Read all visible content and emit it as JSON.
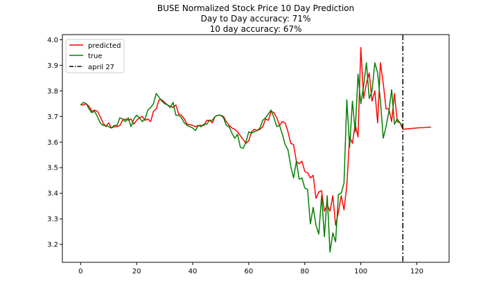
{
  "chart_data": {
    "type": "line",
    "title_lines": [
      "BUSE Normalized Stock Price 10 Day Prediction",
      "Day to Day accuracy: 71%",
      "10 day accuracy: 67%"
    ],
    "xlabel": "",
    "ylabel": "",
    "xlim": [
      -6.5,
      131.5
    ],
    "ylim": [
      3.13,
      4.02
    ],
    "xticks": [
      0,
      20,
      40,
      60,
      80,
      100,
      120
    ],
    "yticks": [
      3.2,
      3.3,
      3.4,
      3.5,
      3.6,
      3.7,
      3.8,
      3.9,
      4.0
    ],
    "grid": false,
    "legend_position": "top-left",
    "series": [
      {
        "name": "predicted",
        "color": "#ff0000",
        "x": [
          0,
          1,
          2,
          3,
          4,
          5,
          6,
          7,
          8,
          9,
          10,
          11,
          12,
          13,
          14,
          15,
          16,
          17,
          18,
          19,
          20,
          21,
          22,
          23,
          24,
          25,
          26,
          27,
          28,
          29,
          30,
          31,
          32,
          33,
          34,
          35,
          36,
          37,
          38,
          39,
          40,
          41,
          42,
          43,
          44,
          45,
          46,
          47,
          48,
          49,
          50,
          51,
          52,
          53,
          54,
          55,
          56,
          57,
          58,
          59,
          60,
          61,
          62,
          63,
          64,
          65,
          66,
          67,
          68,
          69,
          70,
          71,
          72,
          73,
          74,
          75,
          76,
          77,
          78,
          79,
          80,
          81,
          82,
          83,
          84,
          85,
          86,
          87,
          88,
          89,
          90,
          91,
          92,
          93,
          94,
          95,
          96,
          97,
          98,
          99,
          100,
          101,
          102,
          103,
          104,
          105,
          106,
          107,
          108,
          109,
          110,
          111,
          112,
          113,
          114,
          115,
          116,
          117,
          118,
          119,
          120,
          121,
          122,
          123,
          124,
          125
        ],
        "values": [
          3.745,
          3.745,
          3.75,
          3.74,
          3.72,
          3.725,
          3.72,
          3.7,
          3.675,
          3.66,
          3.675,
          3.655,
          3.66,
          3.66,
          3.665,
          3.685,
          3.69,
          3.685,
          3.69,
          3.67,
          3.685,
          3.695,
          3.7,
          3.685,
          3.69,
          3.68,
          3.72,
          3.73,
          3.765,
          3.765,
          3.755,
          3.745,
          3.74,
          3.735,
          3.745,
          3.71,
          3.705,
          3.69,
          3.67,
          3.668,
          3.665,
          3.66,
          3.665,
          3.665,
          3.665,
          3.685,
          3.685,
          3.675,
          3.7,
          3.705,
          3.705,
          3.7,
          3.68,
          3.665,
          3.655,
          3.65,
          3.64,
          3.625,
          3.61,
          3.595,
          3.605,
          3.64,
          3.65,
          3.645,
          3.65,
          3.66,
          3.69,
          3.685,
          3.72,
          3.715,
          3.695,
          3.665,
          3.68,
          3.675,
          3.64,
          3.595,
          3.59,
          3.525,
          3.515,
          3.525,
          3.485,
          3.48,
          3.46,
          3.47,
          3.38,
          3.405,
          3.41,
          3.33,
          3.355,
          3.33,
          3.39,
          3.275,
          3.325,
          3.39,
          3.335,
          3.43,
          3.62,
          3.595,
          3.67,
          3.62,
          3.97,
          3.77,
          3.83,
          3.87,
          3.76,
          3.8,
          3.675,
          3.91,
          3.83,
          3.73,
          3.73,
          3.68,
          3.79,
          3.68,
          3.675,
          3.65,
          3.651,
          3.652,
          3.653,
          3.654,
          3.655,
          3.656,
          3.656,
          3.657,
          3.658,
          3.659
        ]
      },
      {
        "name": "true",
        "color": "#008000",
        "x": [
          0,
          1,
          2,
          3,
          4,
          5,
          6,
          7,
          8,
          9,
          10,
          11,
          12,
          13,
          14,
          15,
          16,
          17,
          18,
          19,
          20,
          21,
          22,
          23,
          24,
          25,
          26,
          27,
          28,
          29,
          30,
          31,
          32,
          33,
          34,
          35,
          36,
          37,
          38,
          39,
          40,
          41,
          42,
          43,
          44,
          45,
          46,
          47,
          48,
          49,
          50,
          51,
          52,
          53,
          54,
          55,
          56,
          57,
          58,
          59,
          60,
          61,
          62,
          63,
          64,
          65,
          66,
          67,
          68,
          69,
          70,
          71,
          72,
          73,
          74,
          75,
          76,
          77,
          78,
          79,
          80,
          81,
          82,
          83,
          84,
          85,
          86,
          87,
          88,
          89,
          90,
          91,
          92,
          93,
          94,
          95,
          96,
          97,
          98,
          99,
          100,
          101,
          102,
          103,
          104,
          105,
          106,
          107,
          108,
          109,
          110,
          111,
          112,
          113,
          114,
          115
        ],
        "values": [
          3.745,
          3.755,
          3.75,
          3.73,
          3.715,
          3.72,
          3.7,
          3.675,
          3.665,
          3.665,
          3.66,
          3.655,
          3.665,
          3.665,
          3.695,
          3.69,
          3.68,
          3.695,
          3.66,
          3.69,
          3.705,
          3.695,
          3.68,
          3.69,
          3.725,
          3.735,
          3.75,
          3.79,
          3.775,
          3.76,
          3.75,
          3.745,
          3.735,
          3.755,
          3.705,
          3.705,
          3.695,
          3.675,
          3.665,
          3.66,
          3.655,
          3.645,
          3.665,
          3.66,
          3.67,
          3.67,
          3.685,
          3.685,
          3.7,
          3.705,
          3.705,
          3.695,
          3.665,
          3.66,
          3.635,
          3.615,
          3.63,
          3.58,
          3.575,
          3.6,
          3.64,
          3.635,
          3.64,
          3.645,
          3.655,
          3.685,
          3.695,
          3.71,
          3.725,
          3.695,
          3.66,
          3.665,
          3.63,
          3.59,
          3.57,
          3.505,
          3.46,
          3.525,
          3.455,
          3.46,
          3.42,
          3.415,
          3.28,
          3.345,
          3.275,
          3.24,
          3.39,
          3.23,
          3.39,
          3.17,
          3.245,
          3.21,
          3.395,
          3.4,
          3.44,
          3.765,
          3.58,
          3.76,
          3.64,
          3.865,
          3.75,
          3.82,
          3.91,
          3.77,
          3.8,
          3.91,
          3.87,
          3.76,
          3.615,
          3.66,
          3.72,
          3.805,
          3.67,
          3.69,
          3.675,
          3.66
        ]
      }
    ],
    "vline": {
      "name": "april 27",
      "x": 115,
      "color": "#000000",
      "style": "dash-dot"
    }
  }
}
